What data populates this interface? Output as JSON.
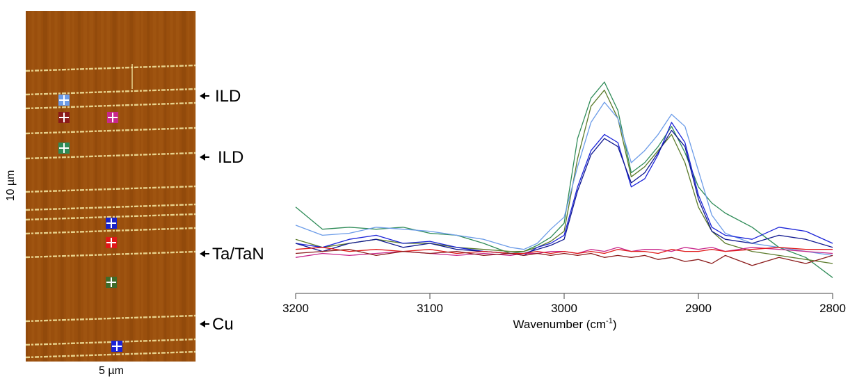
{
  "afm_image": {
    "scale_x": "5 µm",
    "scale_y": "10 µm",
    "base_color": "#9a4f0d",
    "line_color": "#f0e09a",
    "annotations": [
      {
        "label": "ILD"
      },
      {
        "label": "ILD"
      },
      {
        "label": "Ta/TaN"
      },
      {
        "label": "Cu"
      }
    ],
    "markers": [
      {
        "color": "#6c9ce8"
      },
      {
        "color": "#8b1a1a"
      },
      {
        "color": "#c8288c"
      },
      {
        "color": "#2e8b57"
      },
      {
        "color": "#1a23c8"
      },
      {
        "color": "#e01818"
      },
      {
        "color": "#3f6b2a"
      },
      {
        "color": "#1a23d8"
      }
    ]
  },
  "chart_data": {
    "type": "line",
    "xlabel": "Wavenumber (cm",
    "xlabel_sup": "-1",
    "xlabel_end": ")",
    "xlim": [
      3200,
      2800
    ],
    "ylim": [
      0,
      1
    ],
    "xticks": [
      3200,
      3100,
      3000,
      2900,
      2800
    ],
    "x": [
      3200,
      3180,
      3160,
      3140,
      3120,
      3100,
      3080,
      3060,
      3040,
      3030,
      3020,
      3010,
      3000,
      2990,
      2980,
      2970,
      2960,
      2950,
      2940,
      2930,
      2920,
      2910,
      2900,
      2890,
      2880,
      2860,
      2840,
      2820,
      2800
    ],
    "series": [
      {
        "color": "#2e8b57",
        "values": [
          0.38,
          0.27,
          0.28,
          0.27,
          0.28,
          0.25,
          0.24,
          0.2,
          0.15,
          0.16,
          0.19,
          0.23,
          0.3,
          0.72,
          0.92,
          1.0,
          0.86,
          0.55,
          0.6,
          0.68,
          0.78,
          0.65,
          0.48,
          0.4,
          0.35,
          0.28,
          0.18,
          0.13,
          0.03
        ]
      },
      {
        "color": "#5a7a2a",
        "values": [
          0.22,
          0.18,
          0.2,
          0.22,
          0.2,
          0.2,
          0.18,
          0.17,
          0.16,
          0.16,
          0.18,
          0.21,
          0.26,
          0.62,
          0.88,
          0.96,
          0.82,
          0.53,
          0.58,
          0.66,
          0.74,
          0.6,
          0.38,
          0.26,
          0.2,
          0.16,
          0.14,
          0.12,
          0.1
        ]
      },
      {
        "color": "#6c9ce8",
        "values": [
          0.29,
          0.24,
          0.25,
          0.28,
          0.27,
          0.26,
          0.24,
          0.22,
          0.18,
          0.17,
          0.2,
          0.27,
          0.33,
          0.58,
          0.8,
          0.9,
          0.82,
          0.6,
          0.66,
          0.74,
          0.84,
          0.78,
          0.56,
          0.34,
          0.25,
          0.2,
          0.18,
          0.16,
          0.14
        ]
      },
      {
        "color": "#1a23d8",
        "values": [
          0.2,
          0.18,
          0.22,
          0.24,
          0.2,
          0.21,
          0.18,
          0.16,
          0.15,
          0.14,
          0.18,
          0.2,
          0.24,
          0.48,
          0.66,
          0.74,
          0.7,
          0.48,
          0.52,
          0.64,
          0.8,
          0.7,
          0.44,
          0.28,
          0.24,
          0.22,
          0.28,
          0.26,
          0.2
        ]
      },
      {
        "color": "#101890",
        "values": [
          0.2,
          0.16,
          0.2,
          0.22,
          0.18,
          0.2,
          0.17,
          0.16,
          0.15,
          0.15,
          0.17,
          0.19,
          0.22,
          0.46,
          0.64,
          0.72,
          0.68,
          0.5,
          0.55,
          0.65,
          0.76,
          0.68,
          0.42,
          0.26,
          0.22,
          0.2,
          0.24,
          0.22,
          0.18
        ]
      },
      {
        "color": "#c8288c",
        "values": [
          0.13,
          0.15,
          0.14,
          0.15,
          0.16,
          0.15,
          0.14,
          0.15,
          0.14,
          0.15,
          0.15,
          0.16,
          0.16,
          0.15,
          0.17,
          0.16,
          0.18,
          0.16,
          0.17,
          0.17,
          0.16,
          0.18,
          0.17,
          0.18,
          0.16,
          0.18,
          0.17,
          0.16,
          0.15
        ]
      },
      {
        "color": "#e01818",
        "values": [
          0.17,
          0.18,
          0.16,
          0.17,
          0.16,
          0.17,
          0.15,
          0.16,
          0.15,
          0.15,
          0.16,
          0.15,
          0.16,
          0.15,
          0.16,
          0.15,
          0.17,
          0.16,
          0.16,
          0.15,
          0.17,
          0.16,
          0.16,
          0.17,
          0.16,
          0.17,
          0.18,
          0.17,
          0.17
        ]
      },
      {
        "color": "#8b1a1a",
        "values": [
          0.15,
          0.16,
          0.17,
          0.14,
          0.16,
          0.15,
          0.16,
          0.14,
          0.15,
          0.14,
          0.15,
          0.14,
          0.15,
          0.14,
          0.15,
          0.13,
          0.14,
          0.13,
          0.14,
          0.12,
          0.13,
          0.11,
          0.12,
          0.1,
          0.14,
          0.09,
          0.13,
          0.1,
          0.14
        ]
      }
    ]
  }
}
